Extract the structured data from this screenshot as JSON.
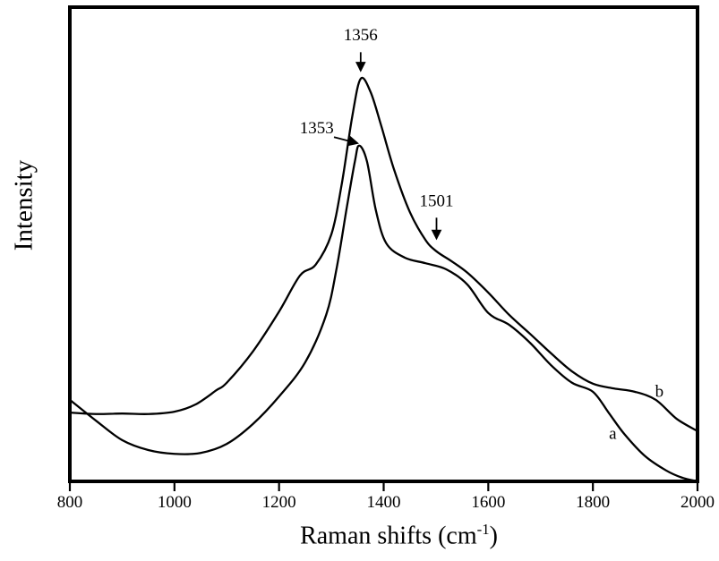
{
  "figure": {
    "ylabel": "Intensity",
    "xlabel_prefix": "Raman shifts (cm",
    "xlabel_superscript": "-1",
    "xlabel_suffix": ")"
  },
  "chart_data": {
    "type": "line",
    "title": "",
    "xlabel": "Raman shifts (cm^-1)",
    "ylabel": "Intensity",
    "xlim": [
      800,
      2000
    ],
    "x_ticks": [
      800,
      1000,
      1200,
      1400,
      1600,
      1800,
      2000
    ],
    "y_axis_ticks": "none (arbitrary units)",
    "grid": false,
    "legend": "curve labels a and b at lower right of plot",
    "line_color": "#000000",
    "series": [
      {
        "name": "a",
        "peak": 1353,
        "x": [
          800,
          850,
          900,
          950,
          1000,
          1050,
          1100,
          1150,
          1200,
          1250,
          1290,
          1310,
          1330,
          1345,
          1353,
          1368,
          1385,
          1405,
          1440,
          1480,
          1520,
          1560,
          1600,
          1640,
          1680,
          1720,
          1760,
          1800,
          1830,
          1860,
          1900,
          1940,
          1970,
          2000
        ],
        "y": [
          17.2,
          12.8,
          8.7,
          6.6,
          5.8,
          6.0,
          7.9,
          12.1,
          17.9,
          25.1,
          35.1,
          44.9,
          58.1,
          67.5,
          70.8,
          67.5,
          57.2,
          50.2,
          47.2,
          46.0,
          44.7,
          41.5,
          35.5,
          33.0,
          29.2,
          24.5,
          20.8,
          18.9,
          14.5,
          10.0,
          5.3,
          2.3,
          0.8,
          0.0
        ]
      },
      {
        "name": "b",
        "peak": 1356,
        "shoulder": 1501,
        "x": [
          800,
          850,
          900,
          950,
          1000,
          1040,
          1080,
          1100,
          1150,
          1200,
          1240,
          1270,
          1300,
          1320,
          1340,
          1356,
          1375,
          1395,
          1420,
          1450,
          1480,
          1501,
          1530,
          1560,
          1600,
          1640,
          1680,
          1720,
          1760,
          1800,
          1840,
          1880,
          1920,
          1960,
          2000
        ],
        "y": [
          14.5,
          14.2,
          14.3,
          14.2,
          14.7,
          16.2,
          19.2,
          20.8,
          27.4,
          35.8,
          43.4,
          45.7,
          52.1,
          62.8,
          77.0,
          84.9,
          82.1,
          75.1,
          65.7,
          56.8,
          50.9,
          48.5,
          46.4,
          44.0,
          39.8,
          35.1,
          31.1,
          27.0,
          23.2,
          20.6,
          19.6,
          18.9,
          17.2,
          13.2,
          10.6
        ]
      }
    ],
    "annotations": [
      {
        "text": "1356",
        "tx": 1356,
        "tv": 93.0,
        "arrow": {
          "x1": 1356,
          "v1": 90.5,
          "x2": 1356,
          "v2": 86.6
        }
      },
      {
        "text": "1353",
        "tx": 1272,
        "tv": 73.4,
        "arrow": {
          "x1": 1305,
          "v1": 72.6,
          "x2": 1350,
          "v2": 71.3
        }
      },
      {
        "text": "1501",
        "tx": 1501,
        "tv": 58.0,
        "arrow": {
          "x1": 1501,
          "v1": 55.6,
          "x2": 1501,
          "v2": 51.2
        }
      },
      {
        "text": "a",
        "tx": 1838,
        "tv": 9.0
      },
      {
        "text": "b",
        "tx": 1927,
        "tv": 17.8
      }
    ]
  }
}
